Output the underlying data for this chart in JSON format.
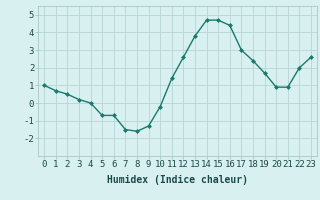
{
  "x": [
    0,
    1,
    2,
    3,
    4,
    5,
    6,
    7,
    8,
    9,
    10,
    11,
    12,
    13,
    14,
    15,
    16,
    17,
    18,
    19,
    20,
    21,
    22,
    23
  ],
  "y": [
    1.0,
    0.7,
    0.5,
    0.2,
    0.0,
    -0.7,
    -0.7,
    -1.5,
    -1.6,
    -1.3,
    -0.2,
    1.4,
    2.6,
    3.8,
    4.7,
    4.7,
    4.4,
    3.0,
    2.4,
    1.7,
    0.9,
    0.9,
    2.0,
    2.6
  ],
  "line_color": "#1a7a6e",
  "marker": "D",
  "marker_size": 2,
  "bg_color": "#d8f0f0",
  "grid_color": "#b8d4d4",
  "xlabel": "Humidex (Indice chaleur)",
  "ylim": [
    -3,
    5.5
  ],
  "xlim": [
    -0.5,
    23.5
  ],
  "yticks": [
    -2,
    -1,
    0,
    1,
    2,
    3,
    4,
    5
  ],
  "xticks": [
    0,
    1,
    2,
    3,
    4,
    5,
    6,
    7,
    8,
    9,
    10,
    11,
    12,
    13,
    14,
    15,
    16,
    17,
    18,
    19,
    20,
    21,
    22,
    23
  ],
  "xlabel_fontsize": 7,
  "tick_fontsize": 6.5,
  "line_width": 1.0,
  "fig_width": 3.2,
  "fig_height": 2.0,
  "dpi": 100
}
